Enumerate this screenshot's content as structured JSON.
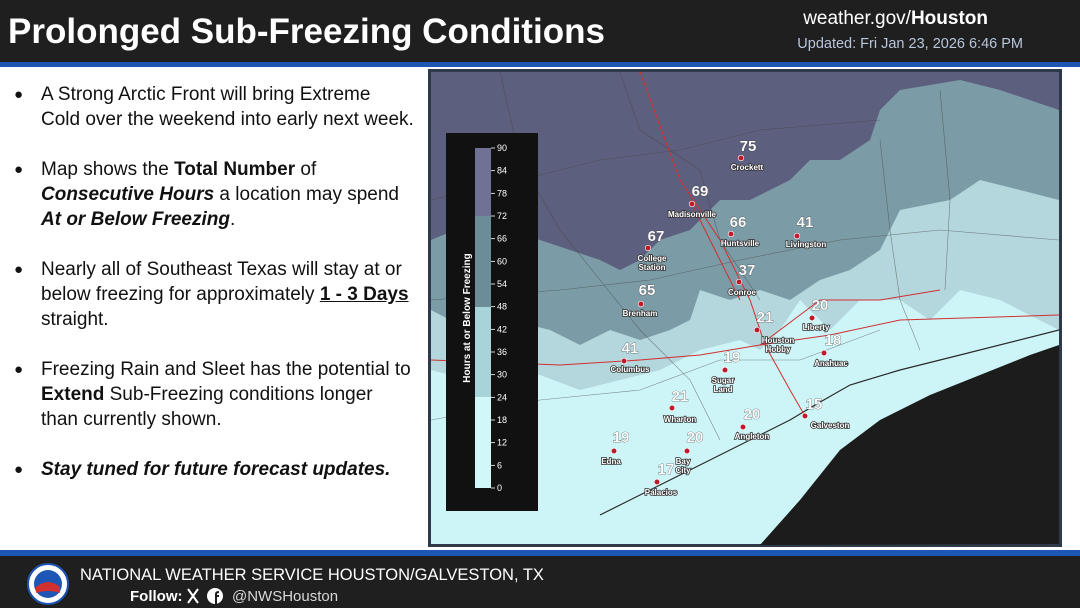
{
  "header": {
    "title": "Prolonged Sub-Freezing Conditions",
    "site_prefix": "weather.gov/",
    "site_office": "Houston",
    "updated": "Updated: Fri Jan 23, 2026 6:46 PM"
  },
  "bullets": [
    {
      "segments": [
        "A Strong Arctic Front will bring Extreme Cold over the weekend into early next week."
      ]
    },
    {
      "segments": [
        "Map shows the ",
        "Total Number",
        " of ",
        "Consecutive Hours",
        " a location may spend ",
        "At or Below Freezing",
        "."
      ]
    },
    {
      "segments": [
        "Nearly all of Southeast Texas will stay at or below freezing for approximately ",
        "1 - 3 Days",
        " straight."
      ]
    },
    {
      "segments": [
        "Freezing Rain and Sleet has the potential to ",
        "Extend",
        " Sub-Freezing conditions longer than currently shown."
      ]
    },
    {
      "segments": [
        "Stay tuned for future forecast updates."
      ]
    }
  ],
  "map": {
    "colorbar": {
      "title": "Hours at or Below Freezing",
      "ticks": [
        90,
        84,
        78,
        72,
        66,
        60,
        54,
        48,
        42,
        36,
        30,
        24,
        18,
        12,
        6,
        0
      ]
    },
    "cities": [
      {
        "hours": 75,
        "name_lines": [
          "Crockett"
        ]
      },
      {
        "hours": 69,
        "name_lines": [
          "Madisonville"
        ]
      },
      {
        "hours": 66,
        "name_lines": [
          "Huntsville"
        ]
      },
      {
        "hours": 41,
        "name_lines": [
          "Livingston"
        ]
      },
      {
        "hours": 67,
        "name_lines": [
          "College",
          "Station"
        ]
      },
      {
        "hours": 37,
        "name_lines": [
          "Conroe"
        ]
      },
      {
        "hours": 65,
        "name_lines": [
          "Brenham"
        ]
      },
      {
        "hours": 20,
        "name_lines": [
          "Liberty"
        ]
      },
      {
        "hours": 21,
        "name_lines": [
          "Houston",
          "Hobby"
        ]
      },
      {
        "hours": 18,
        "name_lines": [
          "Anahuac"
        ]
      },
      {
        "hours": 41,
        "name_lines": [
          "Columbus"
        ]
      },
      {
        "hours": 19,
        "name_lines": [
          "Sugar",
          "Land"
        ]
      },
      {
        "hours": 21,
        "name_lines": [
          "Wharton"
        ]
      },
      {
        "hours": 15,
        "name_lines": [
          "Galveston"
        ]
      },
      {
        "hours": 20,
        "name_lines": [
          "Angleton"
        ]
      },
      {
        "hours": 19,
        "name_lines": [
          "Edna"
        ]
      },
      {
        "hours": 20,
        "name_lines": [
          "Bay",
          "City"
        ]
      },
      {
        "hours": 17,
        "name_lines": [
          "Palacios"
        ]
      }
    ]
  },
  "footer": {
    "office": "NATIONAL WEATHER SERVICE HOUSTON/GALVESTON, TX",
    "follow": "Follow:",
    "handle": "@NWSHouston"
  }
}
